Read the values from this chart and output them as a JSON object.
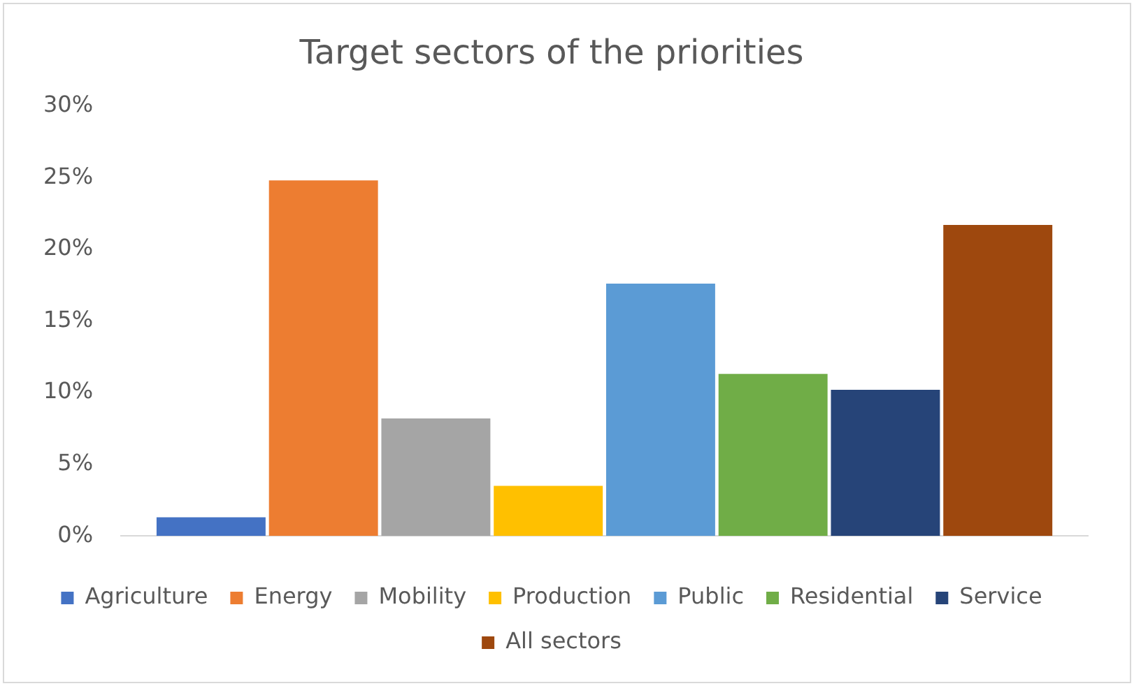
{
  "chart_data": {
    "type": "bar",
    "title": "Target sectors of the priorities",
    "categories": [
      null
    ],
    "series": [
      {
        "name": "Agriculture",
        "color": "#4472c4",
        "values": [
          1.3
        ]
      },
      {
        "name": "Energy",
        "color": "#ed7d31",
        "values": [
          24.8
        ]
      },
      {
        "name": "Mobility",
        "color": "#a5a5a5",
        "values": [
          8.2
        ]
      },
      {
        "name": "Production",
        "color": "#ffc000",
        "values": [
          3.5
        ]
      },
      {
        "name": "Public",
        "color": "#5b9bd5",
        "values": [
          17.6
        ]
      },
      {
        "name": "Residential",
        "color": "#70ad47",
        "values": [
          11.3
        ]
      },
      {
        "name": "Service",
        "color": "#264478",
        "values": [
          10.2
        ]
      },
      {
        "name": "All sectors",
        "color": "#9e480e",
        "values": [
          21.7
        ]
      }
    ],
    "ylim": [
      0,
      30
    ],
    "yticks": [
      {
        "value": 0,
        "label": "0%"
      },
      {
        "value": 5,
        "label": "5%"
      },
      {
        "value": 10,
        "label": "10%"
      },
      {
        "value": 15,
        "label": "15%"
      },
      {
        "value": 20,
        "label": "20%"
      },
      {
        "value": 25,
        "label": "25%"
      },
      {
        "value": 30,
        "label": "30%"
      }
    ],
    "grid": false,
    "legend": "bottom"
  }
}
